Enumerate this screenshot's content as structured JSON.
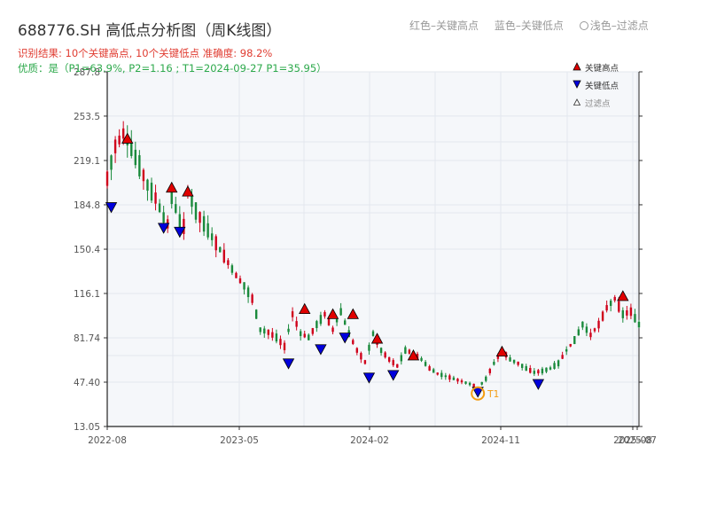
{
  "title": "688776.SH 高低点分析图（周K线图）",
  "top_legend": {
    "red_label": "红色–关键高点",
    "blue_label": "蓝色–关键低点",
    "light_label": "浅色–过滤点"
  },
  "summary_line": "识别结果: 10个关键高点, 10个关键低点   准确度: 98.2%",
  "quality_line": "优质：是（P1=63.9%, P2=1.16 ; T1=2024-09-27 P1=35.95）",
  "plot_legend": {
    "high": "关键高点",
    "low": "关键低点",
    "filtered": "过滤点"
  },
  "colors": {
    "up": "#d0021b",
    "down": "#1a8a3c",
    "high_marker": "#e00000",
    "low_marker": "#0000dd",
    "t1_marker": "#f39c12",
    "plot_bg": "#f5f7fa",
    "grid": "#e3e7ee"
  },
  "chart_data": {
    "type": "candlestick",
    "title": "688776.SH 高低点分析图（周K线图）",
    "ylim": [
      13.05,
      287.8
    ],
    "y_ticks": [
      "287.8",
      "253.5",
      "219.1",
      "184.8",
      "150.4",
      "116.1",
      "81.74",
      "47.40",
      "13.05"
    ],
    "x_ticks": [
      "2022-08",
      "2023-05",
      "2024-02",
      "2024-11",
      "2025-08",
      "2025-07"
    ],
    "x_range": [
      "2022-08",
      "2025-08"
    ],
    "grid": true,
    "price_path": [
      [
        0,
        205
      ],
      [
        2,
        230
      ],
      [
        4,
        240
      ],
      [
        6,
        228
      ],
      [
        8,
        215
      ],
      [
        10,
        200
      ],
      [
        12,
        190
      ],
      [
        14,
        175
      ],
      [
        15,
        170
      ],
      [
        16,
        192
      ],
      [
        18,
        172
      ],
      [
        19,
        168
      ],
      [
        20,
        195
      ],
      [
        22,
        180
      ],
      [
        24,
        170
      ],
      [
        26,
        160
      ],
      [
        28,
        150
      ],
      [
        30,
        140
      ],
      [
        32,
        130
      ],
      [
        34,
        122
      ],
      [
        36,
        112
      ],
      [
        38,
        88
      ],
      [
        40,
        86
      ],
      [
        42,
        82
      ],
      [
        44,
        75
      ],
      [
        46,
        100
      ],
      [
        48,
        85
      ],
      [
        50,
        82
      ],
      [
        52,
        92
      ],
      [
        54,
        100
      ],
      [
        56,
        88
      ],
      [
        58,
        102
      ],
      [
        60,
        85
      ],
      [
        62,
        72
      ],
      [
        64,
        63
      ],
      [
        66,
        85
      ],
      [
        68,
        72
      ],
      [
        70,
        65
      ],
      [
        72,
        60
      ],
      [
        74,
        72
      ],
      [
        76,
        70
      ],
      [
        78,
        65
      ],
      [
        80,
        58
      ],
      [
        82,
        54
      ],
      [
        84,
        52
      ],
      [
        86,
        50
      ],
      [
        88,
        48
      ],
      [
        90,
        46
      ],
      [
        92,
        43
      ],
      [
        94,
        50
      ],
      [
        96,
        62
      ],
      [
        98,
        72
      ],
      [
        100,
        65
      ],
      [
        102,
        62
      ],
      [
        104,
        58
      ],
      [
        106,
        55
      ],
      [
        108,
        56
      ],
      [
        110,
        58
      ],
      [
        112,
        62
      ],
      [
        114,
        72
      ],
      [
        116,
        80
      ],
      [
        118,
        92
      ],
      [
        120,
        84
      ],
      [
        122,
        92
      ],
      [
        124,
        105
      ],
      [
        126,
        112
      ],
      [
        128,
        100
      ],
      [
        130,
        102
      ],
      [
        132,
        92
      ]
    ],
    "last_index": 132,
    "key_highs": [
      {
        "i": 5,
        "price": 236
      },
      {
        "i": 16,
        "price": 198
      },
      {
        "i": 20,
        "price": 195
      },
      {
        "i": 49,
        "price": 104
      },
      {
        "i": 56,
        "price": 100
      },
      {
        "i": 61,
        "price": 100
      },
      {
        "i": 67,
        "price": 81
      },
      {
        "i": 76,
        "price": 68
      },
      {
        "i": 98,
        "price": 71
      },
      {
        "i": 128,
        "price": 114
      }
    ],
    "key_lows": [
      {
        "i": 1,
        "price": 183
      },
      {
        "i": 14,
        "price": 167
      },
      {
        "i": 18,
        "price": 164
      },
      {
        "i": 45,
        "price": 62
      },
      {
        "i": 53,
        "price": 73
      },
      {
        "i": 59,
        "price": 82
      },
      {
        "i": 65,
        "price": 51
      },
      {
        "i": 71,
        "price": 53
      },
      {
        "i": 92,
        "price": 40
      },
      {
        "i": 107,
        "price": 46
      }
    ],
    "t1": {
      "i": 92,
      "price": 40,
      "label": "T1"
    }
  }
}
